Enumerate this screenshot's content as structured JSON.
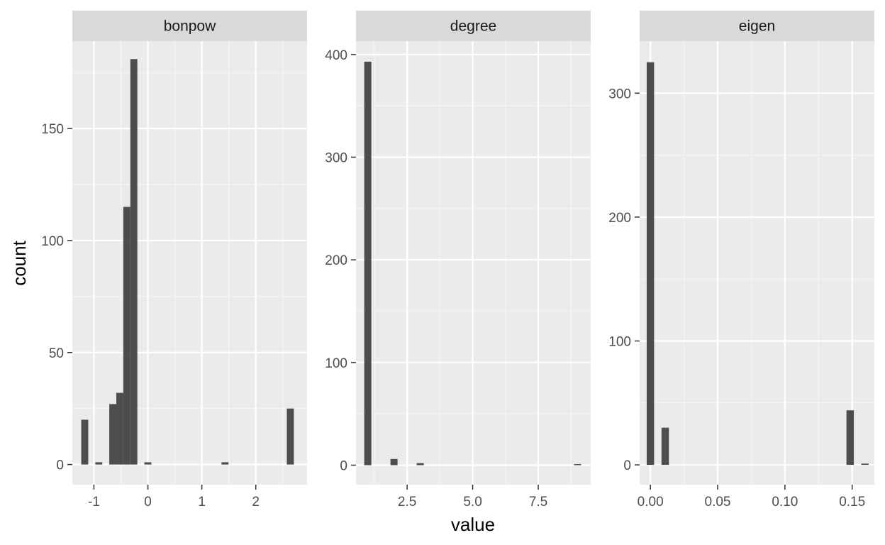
{
  "chart_data": {
    "type": "bar",
    "subtype": "faceted-histogram",
    "xlabel": "value",
    "ylabel": "count",
    "grid": true,
    "colors": {
      "bar": "#4d4d4d",
      "panel_background": "#ebebeb",
      "grid_major": "#ffffff",
      "grid_minor": "#f5f5f5",
      "strip_background": "#d9d9d9",
      "tick_label": "#4d4d4d"
    },
    "facets": [
      {
        "label": "bonpow",
        "xlim": [
          -1.4,
          2.95
        ],
        "ylim": [
          -9,
          189
        ],
        "xticks": [
          -1,
          0,
          1,
          2
        ],
        "xtick_labels": [
          "-1",
          "0",
          "1",
          "2"
        ],
        "yticks": [
          0,
          50,
          100,
          150
        ],
        "ytick_labels": [
          "0",
          "50",
          "100",
          "150"
        ],
        "bin_width": 0.13,
        "bins": [
          {
            "x": -1.17,
            "count": 20
          },
          {
            "x": -0.91,
            "count": 1
          },
          {
            "x": -0.65,
            "count": 27
          },
          {
            "x": -0.52,
            "count": 32
          },
          {
            "x": -0.39,
            "count": 115
          },
          {
            "x": -0.26,
            "count": 181
          },
          {
            "x": 0.0,
            "count": 1
          },
          {
            "x": 1.43,
            "count": 1
          },
          {
            "x": 2.64,
            "count": 25
          }
        ]
      },
      {
        "label": "degree",
        "xlim": [
          0.55,
          9.5
        ],
        "ylim": [
          -19,
          413
        ],
        "xticks": [
          2.5,
          5.0,
          7.5
        ],
        "xtick_labels": [
          "2.5",
          "5.0",
          "7.5"
        ],
        "yticks": [
          0,
          100,
          200,
          300,
          400
        ],
        "ytick_labels": [
          "0",
          "100",
          "200",
          "300",
          "400"
        ],
        "bin_width": 0.27,
        "bins": [
          {
            "x": 1.0,
            "count": 393
          },
          {
            "x": 2.0,
            "count": 6
          },
          {
            "x": 3.0,
            "count": 2
          },
          {
            "x": 9.0,
            "count": 1
          }
        ]
      },
      {
        "label": "eigen",
        "xlim": [
          -0.008,
          0.1665
        ],
        "ylim": [
          -16,
          342
        ],
        "xticks": [
          0.0,
          0.05,
          0.1,
          0.15
        ],
        "xtick_labels": [
          "0.00",
          "0.05",
          "0.10",
          "0.15"
        ],
        "yticks": [
          0,
          100,
          200,
          300
        ],
        "yticks_labels_note": "",
        "ytick_labels": [
          "0",
          "100",
          "200",
          "300"
        ],
        "bin_width": 0.0055,
        "bins": [
          {
            "x": 0.0,
            "count": 325
          },
          {
            "x": 0.011,
            "count": 30
          },
          {
            "x": 0.1485,
            "count": 44
          },
          {
            "x": 0.1595,
            "count": 1
          }
        ]
      }
    ]
  }
}
